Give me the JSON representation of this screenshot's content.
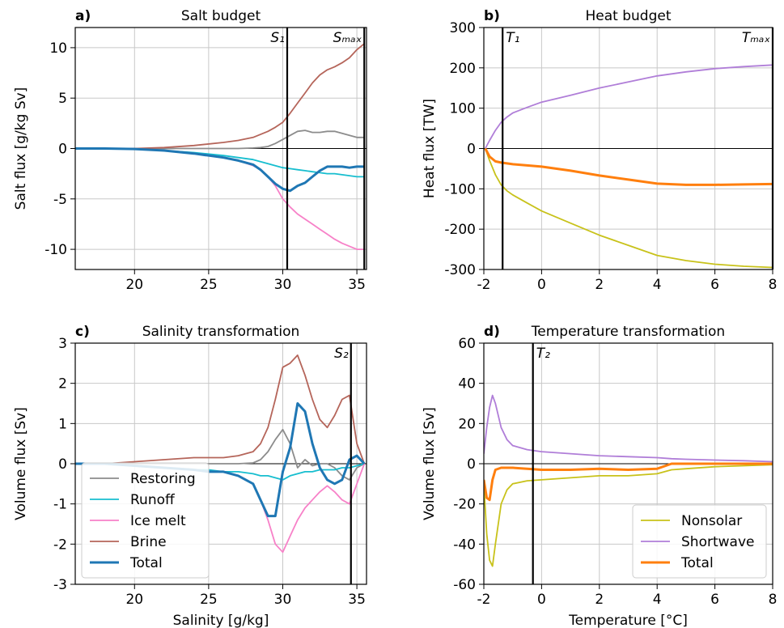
{
  "chart_data": [
    {
      "type": "line",
      "panel": "a)",
      "title": "Salt budget",
      "ylabel": "Salt flux [g/kg Sv]",
      "xlim": [
        16,
        35.65
      ],
      "ylim": [
        -12,
        12
      ],
      "xticks": [
        20,
        25,
        30,
        35
      ],
      "yticks": [
        -10,
        -5,
        0,
        5,
        10
      ],
      "grid": true,
      "hline": 0,
      "vlines": [
        {
          "x": 30.3,
          "label": "S₁"
        },
        {
          "x": 35.5,
          "label": "Sₘₐₓ"
        }
      ],
      "x": [
        16,
        18,
        20,
        22,
        24,
        26,
        27,
        28,
        28.5,
        29,
        29.5,
        30,
        30.5,
        31,
        31.5,
        32,
        32.5,
        33,
        33.5,
        34,
        34.5,
        35,
        35.5
      ],
      "series": [
        {
          "color": "#8c8c8c",
          "width": 1.8,
          "values": [
            0,
            0,
            0,
            0,
            0,
            0,
            0,
            0.05,
            0.1,
            0.2,
            0.5,
            0.9,
            1.3,
            1.7,
            1.8,
            1.6,
            1.6,
            1.7,
            1.7,
            1.5,
            1.3,
            1.1,
            1.1
          ]
        },
        {
          "color": "#17becf",
          "width": 1.8,
          "values": [
            0,
            0,
            -0.05,
            -0.2,
            -0.4,
            -0.7,
            -0.9,
            -1.1,
            -1.3,
            -1.5,
            -1.7,
            -1.9,
            -2.0,
            -2.1,
            -2.2,
            -2.3,
            -2.4,
            -2.5,
            -2.5,
            -2.6,
            -2.7,
            -2.8,
            -2.8
          ]
        },
        {
          "color": "#f781c8",
          "width": 1.8,
          "values": [
            0,
            0,
            -0.05,
            -0.2,
            -0.5,
            -0.9,
            -1.2,
            -1.7,
            -2.1,
            -2.8,
            -3.7,
            -5.0,
            -5.8,
            -6.5,
            -7.0,
            -7.5,
            -8.0,
            -8.5,
            -9.0,
            -9.4,
            -9.7,
            -10.0,
            -10.0
          ]
        },
        {
          "color": "#b5655a",
          "width": 1.8,
          "values": [
            0,
            0,
            0,
            0.1,
            0.3,
            0.6,
            0.8,
            1.1,
            1.4,
            1.7,
            2.1,
            2.6,
            3.5,
            4.5,
            5.5,
            6.5,
            7.3,
            7.8,
            8.1,
            8.5,
            9.0,
            9.8,
            10.4
          ]
        },
        {
          "color": "#1f77b4",
          "width": 3,
          "values": [
            0,
            0,
            -0.05,
            -0.2,
            -0.5,
            -0.9,
            -1.2,
            -1.6,
            -2.1,
            -2.8,
            -3.5,
            -4.0,
            -4.2,
            -3.7,
            -3.4,
            -2.8,
            -2.2,
            -1.8,
            -1.8,
            -1.8,
            -1.9,
            -1.8,
            -1.8
          ]
        }
      ]
    },
    {
      "type": "line",
      "panel": "b)",
      "title": "Heat budget",
      "ylabel": "Heat flux [TW]",
      "xlim": [
        -2,
        8
      ],
      "ylim": [
        -300,
        300
      ],
      "xticks": [
        -2,
        0,
        2,
        4,
        6,
        8
      ],
      "yticks": [
        -300,
        -200,
        -100,
        0,
        100,
        200,
        300
      ],
      "grid": true,
      "hline": 0,
      "vlines": [
        {
          "x": -1.35,
          "label": "T₁"
        },
        {
          "x": 8,
          "label": "Tₘₐₓ"
        }
      ],
      "x": [
        -1.95,
        -1.8,
        -1.6,
        -1.4,
        -1.2,
        -1,
        -0.5,
        0,
        1,
        2,
        3,
        4,
        5,
        6,
        7,
        8
      ],
      "series": [
        {
          "color": "#c8c21a",
          "width": 1.8,
          "values": [
            0,
            -30,
            -65,
            -90,
            -105,
            -115,
            -135,
            -155,
            -185,
            -215,
            -240,
            -265,
            -278,
            -287,
            -292,
            -295
          ]
        },
        {
          "color": "#b07ed8",
          "width": 1.8,
          "values": [
            0,
            20,
            45,
            65,
            78,
            88,
            102,
            115,
            132,
            150,
            165,
            180,
            190,
            198,
            203,
            207
          ]
        },
        {
          "color": "#ff7f0e",
          "width": 3,
          "values": [
            0,
            -20,
            -32,
            -35,
            -37,
            -39,
            -42,
            -45,
            -55,
            -67,
            -77,
            -87,
            -90,
            -90,
            -89,
            -88
          ]
        }
      ]
    },
    {
      "type": "line",
      "panel": "c)",
      "title": "Salinity transformation",
      "xlabel": "Salinity [g/kg]",
      "ylabel": "Volume flux [Sv]",
      "xlim": [
        16,
        35.65
      ],
      "ylim": [
        -3,
        3
      ],
      "xticks": [
        20,
        25,
        30,
        35
      ],
      "yticks": [
        -3,
        -2,
        -1,
        0,
        1,
        2,
        3
      ],
      "grid": true,
      "hline": 0,
      "legend": "lower left",
      "vlines": [
        {
          "x": 34.6,
          "label": "S₂"
        }
      ],
      "x": [
        16,
        18,
        20,
        22,
        24,
        25,
        26,
        27,
        28,
        28.5,
        29,
        29.5,
        30,
        30.5,
        31,
        31.5,
        32,
        32.5,
        33,
        33.5,
        34,
        34.5,
        35,
        35.5
      ],
      "series": [
        {
          "name": "Restoring",
          "color": "#8c8c8c",
          "width": 1.8,
          "values": [
            0,
            0,
            0,
            0,
            0,
            0,
            0,
            0,
            0.02,
            0.1,
            0.3,
            0.6,
            0.85,
            0.5,
            -0.1,
            0.1,
            -0.05,
            0,
            0,
            -0.1,
            -0.3,
            -0.4,
            -0.1,
            0
          ]
        },
        {
          "name": "Runoff",
          "color": "#17becf",
          "width": 1.8,
          "values": [
            0,
            0,
            -0.05,
            -0.1,
            -0.15,
            -0.15,
            -0.2,
            -0.2,
            -0.25,
            -0.3,
            -0.3,
            -0.35,
            -0.4,
            -0.3,
            -0.25,
            -0.2,
            -0.2,
            -0.15,
            -0.15,
            -0.15,
            -0.1,
            -0.1,
            -0.05,
            0
          ]
        },
        {
          "name": "Ice melt",
          "color": "#f781c8",
          "width": 1.8,
          "values": [
            0,
            0,
            -0.05,
            -0.1,
            -0.15,
            -0.2,
            -0.2,
            -0.3,
            -0.5,
            -0.9,
            -1.4,
            -2.0,
            -2.2,
            -1.8,
            -1.4,
            -1.1,
            -0.9,
            -0.7,
            -0.55,
            -0.7,
            -0.9,
            -1.0,
            -0.5,
            0
          ]
        },
        {
          "name": "Brine",
          "color": "#b5655a",
          "width": 1.8,
          "values": [
            0,
            0,
            0.05,
            0.1,
            0.15,
            0.15,
            0.15,
            0.2,
            0.3,
            0.5,
            0.9,
            1.6,
            2.4,
            2.5,
            2.7,
            2.2,
            1.6,
            1.1,
            0.9,
            1.2,
            1.6,
            1.7,
            0.5,
            0
          ]
        },
        {
          "name": "Total",
          "color": "#1f77b4",
          "width": 3,
          "values": [
            0,
            0,
            -0.05,
            -0.1,
            -0.15,
            -0.2,
            -0.2,
            -0.3,
            -0.5,
            -0.9,
            -1.3,
            -1.3,
            -0.2,
            0.4,
            1.5,
            1.3,
            0.5,
            -0.1,
            -0.4,
            -0.5,
            -0.4,
            0.1,
            0.2,
            0
          ]
        }
      ]
    },
    {
      "type": "line",
      "panel": "d)",
      "title": "Temperature transformation",
      "xlabel": "Temperature [°C]",
      "ylabel": "Volume flux [Sv]",
      "xlim": [
        -2,
        8
      ],
      "ylim": [
        -60,
        60
      ],
      "xticks": [
        -2,
        0,
        2,
        4,
        6,
        8
      ],
      "yticks": [
        -60,
        -40,
        -20,
        0,
        20,
        40,
        60
      ],
      "grid": true,
      "hline": 0,
      "legend": "lower right",
      "vlines": [
        {
          "x": -0.3,
          "label": "T₂"
        }
      ],
      "x": [
        -2,
        -1.9,
        -1.8,
        -1.7,
        -1.6,
        -1.4,
        -1.2,
        -1,
        -0.5,
        0,
        1,
        2,
        3,
        4,
        4.5,
        5,
        6,
        7,
        8
      ],
      "series": [
        {
          "name": "Nonsolar",
          "color": "#c8c21a",
          "width": 1.8,
          "values": [
            -10,
            -35,
            -48,
            -51,
            -40,
            -20,
            -13,
            -10,
            -8.5,
            -8,
            -7,
            -6,
            -6,
            -5,
            -3,
            -2.5,
            -1.5,
            -1,
            -0.5
          ]
        },
        {
          "name": "Shortwave",
          "color": "#b07ed8",
          "width": 1.8,
          "values": [
            5,
            18,
            28,
            34,
            30,
            18,
            12,
            9,
            7,
            6,
            5,
            4,
            3.5,
            3,
            2.5,
            2.2,
            1.8,
            1.5,
            1
          ]
        },
        {
          "name": "Total",
          "color": "#ff7f0e",
          "width": 3,
          "values": [
            -8,
            -17,
            -18,
            -8,
            -3,
            -2,
            -2,
            -2,
            -2.5,
            -3,
            -3,
            -2.5,
            -3,
            -2.5,
            0,
            0,
            0,
            0,
            0
          ]
        }
      ]
    }
  ]
}
